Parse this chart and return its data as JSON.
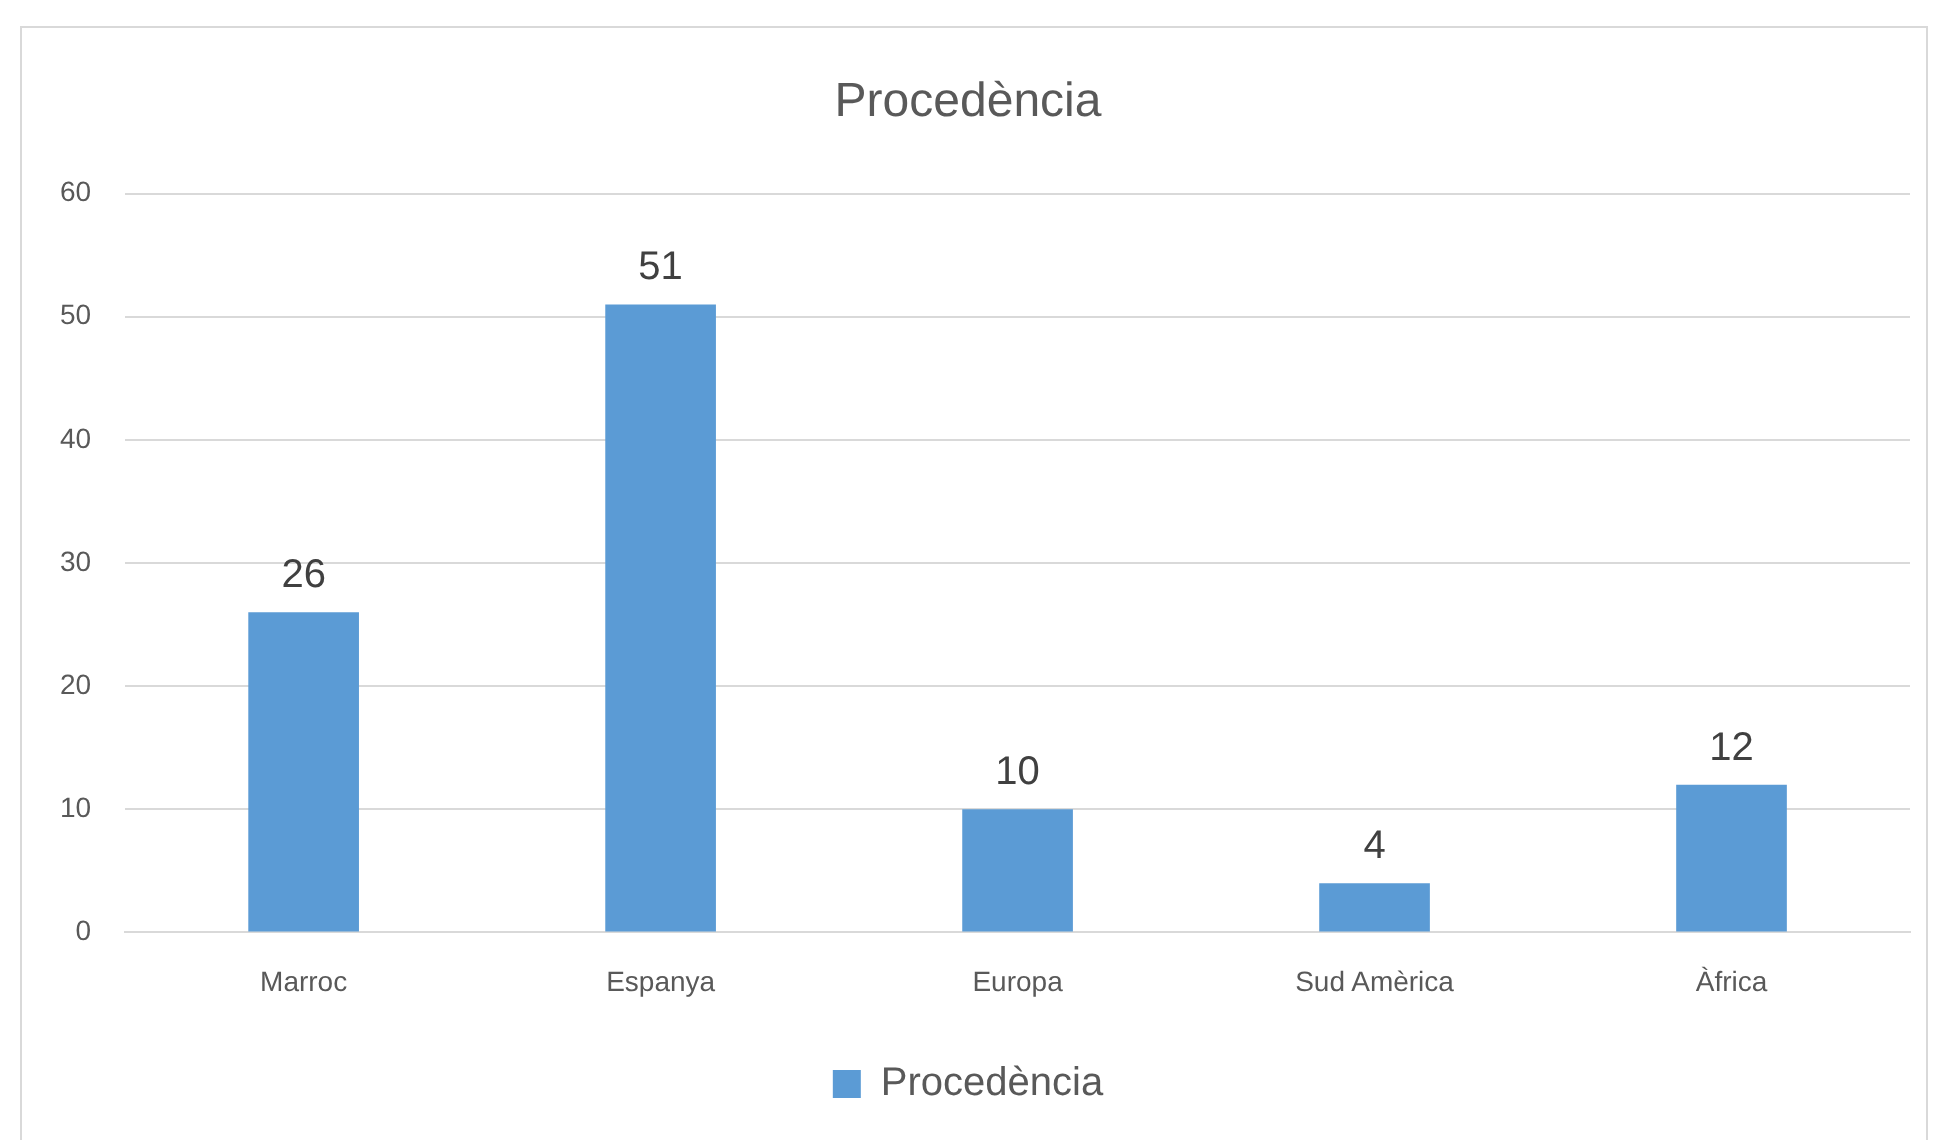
{
  "chart_data": {
    "type": "bar",
    "title": "Procedència",
    "categories": [
      "Marroc",
      "Espanya",
      "Europa",
      "Sud Amèrica",
      "Àfrica"
    ],
    "series": [
      {
        "name": "Procedència",
        "color": "#5b9bd5",
        "values": [
          26,
          51,
          10,
          4,
          12
        ]
      }
    ],
    "ylim": [
      0,
      60
    ],
    "yticks": [
      0,
      10,
      20,
      30,
      40,
      50,
      60
    ],
    "grid": "y",
    "legend": "bottom",
    "data_labels": true
  }
}
